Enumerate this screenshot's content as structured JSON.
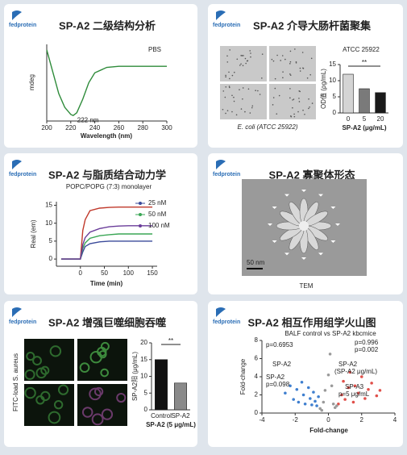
{
  "panels": [
    {
      "logo": "fedprotein",
      "title": "SP-A2 二级结构分析",
      "chart": {
        "type": "line",
        "legend": "PBS",
        "annotation": "222 nm",
        "x_label": "Wavelength (nm)",
        "y_label": "mdeg",
        "x": [
          200,
          205,
          210,
          215,
          220,
          222,
          225,
          230,
          235,
          240,
          250,
          260,
          280,
          300
        ],
        "series": [
          {
            "name": "PBS",
            "color": "#2e8b3a",
            "values": [
              3,
              -1,
              -5,
              -7.5,
              -8.8,
              -9,
              -8.5,
              -6,
              -3,
              -1.2,
              -0.2,
              0,
              0,
              0
            ]
          }
        ],
        "xlim": [
          200,
          300
        ],
        "xticks": [
          200,
          220,
          240,
          260,
          280,
          300
        ],
        "ylim": [
          -10,
          4
        ]
      }
    },
    {
      "logo": "fedprotein",
      "title": "SP-A2 介导大肠杆菌聚集",
      "caption": "E. coli (ATCC 25922)",
      "chart": {
        "type": "bar",
        "title": "ATCC 25922",
        "y_label": "OD值 (ρg/mL)",
        "x_label": "SP-A2 (μg/mL)",
        "categories": [
          "0",
          "5",
          "20"
        ],
        "values": [
          12,
          7.5,
          6.3
        ],
        "colors": [
          "#d4d4d4",
          "#7a7a7a",
          "#1a1a1a"
        ],
        "ylim": [
          0,
          15
        ],
        "yticks": [
          0,
          5,
          10,
          15
        ],
        "significance": "**"
      }
    },
    {
      "logo": "fedprotein",
      "title": "SP-A2 与脂质结合动力学",
      "chart": {
        "type": "line",
        "title": "POPC/POPG (7:3) monolayer",
        "x_label": "Time (min)",
        "y_label": "Real (em)",
        "x": [
          -40,
          -20,
          0,
          5,
          10,
          20,
          40,
          60,
          80,
          100,
          120,
          150
        ],
        "series": [
          {
            "color": "#c0392b",
            "values": [
              0,
              0,
              0,
              8,
              11,
              13.5,
              14.2,
              14.4,
              14.5,
              14.5,
              14.5,
              14.5
            ]
          },
          {
            "name": "25 nM",
            "color": "#3a4a9a",
            "values": [
              0,
              0,
              0,
              2,
              3.5,
              4.3,
              4.8,
              5,
              5,
              5,
              5,
              5
            ]
          },
          {
            "name": "50 nM",
            "color": "#3aa655",
            "values": [
              0,
              0,
              0,
              3,
              4.5,
              5.8,
              6.5,
              6.8,
              7,
              7,
              7,
              7
            ]
          },
          {
            "name": "100 nM",
            "color": "#6a3d9a",
            "values": [
              0,
              0,
              0,
              4,
              6,
              7.5,
              8.5,
              9,
              9.2,
              9.3,
              9.3,
              9.3
            ]
          }
        ],
        "xlim": [
          -50,
          160
        ],
        "xticks": [
          0,
          50,
          100,
          150
        ],
        "ylim": [
          -2,
          16
        ],
        "yticks": [
          0,
          5,
          10,
          15
        ]
      }
    },
    {
      "logo": "fedprotein",
      "title": "SP-A2 寡聚体形态",
      "scale_bar": "50 nm",
      "caption": "TEM"
    },
    {
      "logo": "fedprotein",
      "title": "SP-A2 增强巨噬细胞吞噬",
      "side_label": "FITC-load S. aureus",
      "chart": {
        "type": "bar",
        "y_label": "SP-A2阳 (μg/mL)",
        "x_label": "SP-A2 (5 μg/mL)",
        "categories": [
          "Control",
          "SP-A2"
        ],
        "values": [
          15,
          8
        ],
        "colors": [
          "#111111",
          "#8a8a8a"
        ],
        "ylim": [
          0,
          20
        ],
        "yticks": [
          0,
          5,
          10,
          15,
          20
        ],
        "significance": "**"
      }
    },
    {
      "logo": "fedprotein",
      "title": "SP-A2 相互作用组学火山图",
      "chart": {
        "type": "scatter",
        "title": "BALF control vs SP-A2 kbcmice",
        "x_label": "Fold-change",
        "y_label": "Fold-change",
        "annotations": [
          "p=0.6953",
          "p=0.996",
          "p=0.002",
          "SP-A2",
          "SP-A2",
          "p=0.098",
          "SP-A2",
          "(SP-A2 μg/mL)",
          "SP-A3",
          "p=5 μg/mL"
        ],
        "series": [
          {
            "color": "#3f7fcf",
            "x": [
              -2.6,
              -2.3,
              -2.1,
              -1.9,
              -1.8,
              -1.6,
              -1.5,
              -1.4,
              -1.2,
              -1.1,
              -1.0,
              -0.9,
              -0.8,
              -0.7,
              -0.6
            ],
            "values": [
              2.2,
              3.0,
              1.5,
              2.6,
              1.2,
              3.4,
              2.0,
              1.0,
              2.8,
              1.6,
              0.9,
              2.3,
              1.3,
              0.8,
              1.8
            ]
          },
          {
            "color": "#e0504a",
            "x": [
              0.6,
              0.8,
              0.9,
              1.0,
              1.2,
              1.3,
              1.5,
              1.6,
              1.8,
              2.0,
              2.2,
              2.4,
              2.6,
              2.9,
              3.1
            ],
            "values": [
              1.0,
              2.0,
              3.5,
              1.5,
              2.8,
              4.5,
              1.2,
              3.0,
              2.2,
              4.0,
              1.6,
              2.6,
              3.3,
              1.9,
              2.5
            ]
          },
          {
            "color": "#9a9a9a",
            "x": [
              -0.5,
              -0.3,
              -0.2,
              0,
              0.1,
              0.2,
              0.3,
              0.4,
              -0.4,
              0.5
            ],
            "values": [
              0.5,
              1.2,
              2.5,
              4.2,
              6.5,
              3.0,
              1.0,
              0.6,
              0.3,
              0.8
            ]
          }
        ],
        "xlim": [
          -4,
          4
        ],
        "xticks": [
          -4,
          -2,
          0,
          2,
          4
        ],
        "ylim": [
          0,
          8
        ],
        "yticks": [
          0,
          2,
          4,
          6,
          8
        ]
      }
    }
  ]
}
